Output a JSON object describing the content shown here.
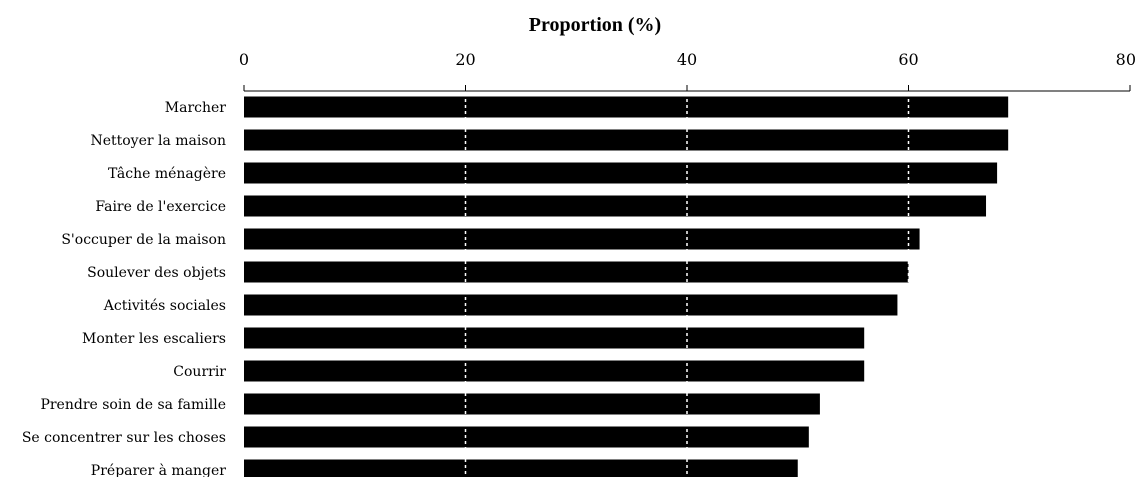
{
  "chart_data": {
    "type": "bar",
    "orientation": "horizontal",
    "title": "Proportion (%)",
    "xlim": [
      0,
      80
    ],
    "xticks": [
      0,
      20,
      40,
      60,
      80
    ],
    "grid": true,
    "bar_color": "#000000",
    "grid_color": "#ffffff",
    "categories": [
      "Marcher",
      "Nettoyer la maison",
      "Tâche ménagère",
      "Faire de l'exercice",
      "S'occuper de la maison",
      "Soulever des objets",
      "Activités sociales",
      "Monter les escaliers",
      "Courrir",
      "Prendre soin de sa famille",
      "Se concentrer sur les choses",
      "Préparer à manger"
    ],
    "values": [
      69,
      69,
      68,
      67,
      61,
      60,
      59,
      56,
      56,
      52,
      51,
      50
    ]
  }
}
